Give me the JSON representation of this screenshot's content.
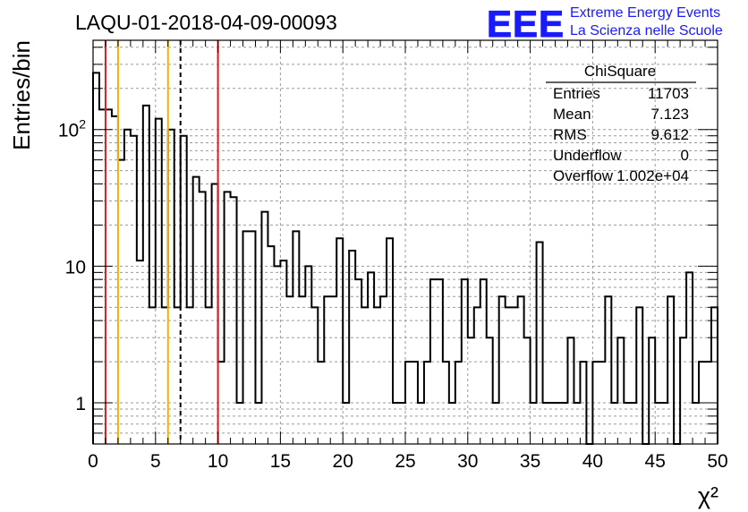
{
  "header": {
    "run_title": "LAQU-01-2018-04-09-00093",
    "logo_text": "EEE",
    "project_line1": "Extreme Energy Events",
    "project_line2": "La Scienza nelle Scuole",
    "brand_color": "#1a1aff"
  },
  "stats_box": {
    "title": "ChiSquare",
    "rows": [
      {
        "label": "Entries",
        "value": "11703"
      },
      {
        "label": "Mean",
        "value": "7.123"
      },
      {
        "label": "RMS",
        "value": "9.612"
      },
      {
        "label": "Underflow",
        "value": "0"
      },
      {
        "label": "Overflow",
        "value": "1.002e+04"
      }
    ]
  },
  "chart_data": {
    "type": "histogram",
    "ylabel": "Entries/bin",
    "xlabel": "χ²",
    "xlim": [
      0,
      50
    ],
    "ylim": [
      0.5,
      450
    ],
    "y_scale": "log",
    "grid": true,
    "bin_width": 0.5,
    "x_ticks": [
      "0",
      "5",
      "10",
      "15",
      "20",
      "25",
      "30",
      "35",
      "40",
      "45",
      "50"
    ],
    "y_ticks": [
      {
        "value": 1,
        "label": "1"
      },
      {
        "value": 10,
        "label": "10"
      },
      {
        "value": 100,
        "label": "10^2"
      }
    ],
    "values": [
      260,
      140,
      140,
      125,
      60,
      100,
      90,
      11,
      150,
      5,
      120,
      5,
      100,
      5,
      90,
      5,
      45,
      35,
      5,
      40,
      2,
      35,
      32,
      1,
      18,
      18,
      1,
      25,
      14,
      10,
      11,
      6,
      18,
      6,
      10,
      5,
      2,
      6,
      6,
      16,
      1,
      13,
      8,
      5,
      9,
      5,
      6,
      16,
      1,
      1,
      2,
      2,
      1,
      2,
      8,
      8,
      2,
      1,
      2,
      8,
      3,
      5,
      8,
      3,
      1,
      6,
      5,
      5,
      6,
      3,
      1,
      15,
      1,
      1,
      1,
      1,
      3,
      1,
      2,
      0,
      2,
      2,
      6,
      1,
      3,
      1,
      1,
      5,
      0,
      3,
      1,
      1,
      6,
      0,
      3,
      9,
      1,
      2,
      2,
      5
    ],
    "vertical_lines": [
      {
        "x": 1,
        "color": "#e8191e",
        "style": "solid"
      },
      {
        "x": 2,
        "color": "#f2b400",
        "style": "solid"
      },
      {
        "x": 6,
        "color": "#f2b400",
        "style": "solid"
      },
      {
        "x": 7,
        "color": "#000000",
        "style": "dashed"
      },
      {
        "x": 10,
        "color": "#e8191e",
        "style": "solid"
      }
    ]
  }
}
